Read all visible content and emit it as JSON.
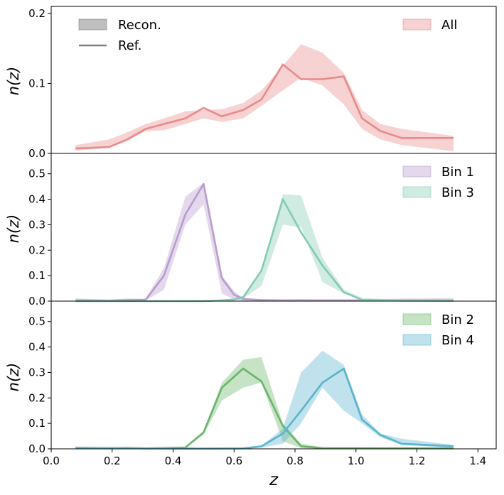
{
  "colors": {
    "all": "#e88a8a",
    "bin1": "#b79ccd",
    "bin2": "#6ab56a",
    "bin3": "#83cbb4",
    "bin4": "#5ab4cc",
    "legend_gray": "#808080"
  },
  "chart_data": [
    {
      "type": "area",
      "ylabel": "n(z)",
      "ylim": [
        0,
        0.21
      ],
      "yticks": [
        "0.0",
        "0.1",
        "0.2"
      ],
      "legend_placement": "top-left and top-right",
      "legend": [
        "Recon.",
        "Ref."
      ],
      "series": [
        {
          "name": "All",
          "color": "all",
          "x": [
            0.08,
            0.19,
            0.25,
            0.31,
            0.37,
            0.44,
            0.5,
            0.56,
            0.63,
            0.69,
            0.76,
            0.82,
            0.89,
            0.96,
            1.02,
            1.08,
            1.15,
            1.32
          ],
          "ref": [
            0.007,
            0.009,
            0.02,
            0.035,
            0.042,
            0.05,
            0.065,
            0.053,
            0.062,
            0.077,
            0.127,
            0.106,
            0.106,
            0.11,
            0.05,
            0.032,
            0.022,
            0.022
          ],
          "upper": [
            0.012,
            0.02,
            0.03,
            0.042,
            0.05,
            0.06,
            0.062,
            0.063,
            0.072,
            0.09,
            0.125,
            0.156,
            0.144,
            0.115,
            0.062,
            0.042,
            0.035,
            0.025
          ],
          "lower": [
            0.004,
            0.008,
            0.018,
            0.032,
            0.033,
            0.042,
            0.05,
            0.045,
            0.05,
            0.068,
            0.09,
            0.108,
            0.097,
            0.07,
            0.035,
            0.02,
            0.012,
            0.003
          ]
        }
      ]
    },
    {
      "type": "area",
      "ylabel": "n(z)",
      "ylim": [
        0,
        0.58
      ],
      "yticks": [
        "0.0",
        "0.1",
        "0.2",
        "0.3",
        "0.4",
        "0.5"
      ],
      "legend_placement": "top-right",
      "series": [
        {
          "name": "Bin 1",
          "color": "bin1",
          "x": [
            0.08,
            0.19,
            0.25,
            0.31,
            0.37,
            0.44,
            0.5,
            0.56,
            0.6,
            0.63,
            0.69,
            0.76,
            0.82,
            0.89,
            0.96,
            1.02,
            1.15,
            1.32
          ],
          "ref": [
            0.003,
            0.002,
            0.004,
            0.005,
            0.1,
            0.34,
            0.46,
            0.09,
            0.025,
            0.008,
            0.004,
            0.003,
            0.003,
            0.003,
            0.003,
            0.003,
            0.003,
            0.003
          ],
          "upper": [
            0.01,
            0.006,
            0.01,
            0.01,
            0.13,
            0.41,
            0.465,
            0.1,
            0.04,
            0.012,
            0.008,
            0.006,
            0.008,
            0.006,
            0.006,
            0.006,
            0.01,
            0.012
          ],
          "lower": [
            0.0,
            0.0,
            0.0,
            0.002,
            0.045,
            0.3,
            0.38,
            0.03,
            0.006,
            0.001,
            0.0,
            0.0,
            0.0,
            0.0,
            0.0,
            0.0,
            0.0,
            0.0
          ]
        },
        {
          "name": "Bin 3",
          "color": "bin3",
          "x": [
            0.08,
            0.31,
            0.5,
            0.56,
            0.6,
            0.63,
            0.69,
            0.76,
            0.82,
            0.89,
            0.96,
            1.02,
            1.15,
            1.32
          ],
          "ref": [
            0.0,
            0.0,
            0.0,
            0.003,
            0.006,
            0.015,
            0.12,
            0.4,
            0.27,
            0.14,
            0.035,
            0.005,
            0.002,
            0.001
          ],
          "upper": [
            0.003,
            0.003,
            0.004,
            0.006,
            0.01,
            0.022,
            0.125,
            0.42,
            0.415,
            0.17,
            0.045,
            0.012,
            0.006,
            0.004
          ],
          "lower": [
            0.0,
            0.0,
            0.0,
            0.0,
            0.002,
            0.01,
            0.06,
            0.3,
            0.29,
            0.075,
            0.03,
            0.003,
            0.0,
            0.0
          ]
        }
      ]
    },
    {
      "type": "area",
      "xlabel": "z",
      "ylabel": "n(z)",
      "xlim": [
        0.0,
        1.46
      ],
      "xticks": [
        "0.0",
        "0.2",
        "0.4",
        "0.6",
        "0.8",
        "1.0",
        "1.2",
        "1.4"
      ],
      "ylim": [
        0,
        0.58
      ],
      "yticks": [
        "0.0",
        "0.1",
        "0.2",
        "0.3",
        "0.4",
        "0.5"
      ],
      "legend_placement": "top-right",
      "series": [
        {
          "name": "Bin 2",
          "color": "bin2",
          "x": [
            0.08,
            0.19,
            0.25,
            0.31,
            0.37,
            0.44,
            0.5,
            0.56,
            0.63,
            0.69,
            0.76,
            0.82,
            0.89,
            1.32
          ],
          "ref": [
            0.003,
            0.002,
            0.003,
            0.002,
            0.003,
            0.005,
            0.065,
            0.24,
            0.315,
            0.265,
            0.09,
            0.01,
            0.003,
            0.002
          ],
          "upper": [
            0.008,
            0.006,
            0.008,
            0.005,
            0.006,
            0.008,
            0.07,
            0.26,
            0.35,
            0.36,
            0.1,
            0.02,
            0.006,
            0.005
          ],
          "lower": [
            0.0,
            0.0,
            0.0,
            0.0,
            0.0,
            0.002,
            0.055,
            0.19,
            0.24,
            0.26,
            0.03,
            0.003,
            0.0,
            0.0
          ]
        },
        {
          "name": "Bin 4",
          "color": "bin4",
          "x": [
            0.08,
            0.31,
            0.5,
            0.63,
            0.69,
            0.76,
            0.82,
            0.89,
            0.96,
            1.02,
            1.08,
            1.15,
            1.32
          ],
          "ref": [
            0.004,
            0.002,
            0.001,
            0.002,
            0.01,
            0.06,
            0.15,
            0.26,
            0.315,
            0.115,
            0.055,
            0.02,
            0.01
          ],
          "upper": [
            0.008,
            0.005,
            0.003,
            0.005,
            0.012,
            0.08,
            0.3,
            0.385,
            0.33,
            0.135,
            0.06,
            0.04,
            0.015
          ],
          "lower": [
            0.0,
            0.0,
            0.0,
            0.0,
            0.005,
            0.02,
            0.1,
            0.24,
            0.15,
            0.1,
            0.045,
            0.015,
            0.004
          ]
        }
      ]
    }
  ]
}
